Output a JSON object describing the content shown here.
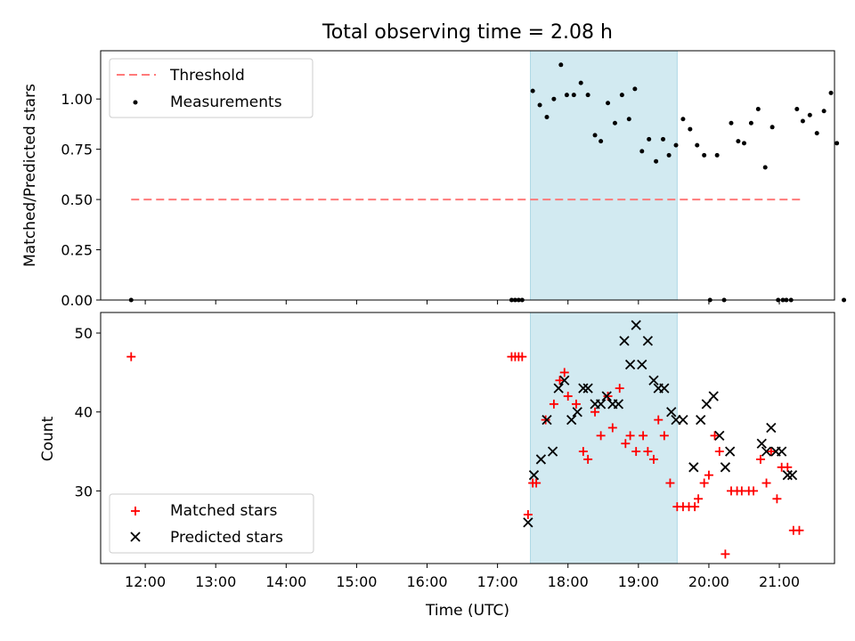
{
  "chart_data": [
    {
      "type": "scatter",
      "title": "Total observing time = 2.08 h",
      "ylabel": "Matched/Predicted stars",
      "xlabel": "",
      "xlim": [
        "11:22",
        "21:47"
      ],
      "ylim": [
        0,
        1.24
      ],
      "yticks": [
        "0.00",
        "0.25",
        "0.50",
        "0.75",
        "1.00"
      ],
      "highlight_span": {
        "from": "17:28",
        "to": "19:33",
        "color": "#add8e6"
      },
      "legend_position": "upper-left",
      "legend": [
        {
          "name": "Threshold",
          "style": "dashed-line",
          "color": "#ff7a7a"
        },
        {
          "name": "Measurements",
          "style": "dot",
          "color": "#000000"
        }
      ],
      "threshold": {
        "y": 0.5,
        "from": "11:48",
        "to": "21:18"
      },
      "series": [
        {
          "name": "Measurements",
          "points": [
            [
              "11:48",
              0.0
            ],
            [
              "17:12",
              0.0
            ],
            [
              "17:15",
              0.0
            ],
            [
              "17:18",
              0.0
            ],
            [
              "17:21",
              0.0
            ],
            [
              "17:30",
              1.04
            ],
            [
              "17:36",
              0.97
            ],
            [
              "17:42",
              0.91
            ],
            [
              "17:48",
              1.0
            ],
            [
              "17:54",
              1.17
            ],
            [
              "17:59",
              1.02
            ],
            [
              "18:05",
              1.02
            ],
            [
              "18:11",
              1.08
            ],
            [
              "18:17",
              1.02
            ],
            [
              "18:23",
              0.82
            ],
            [
              "18:28",
              0.79
            ],
            [
              "18:34",
              0.98
            ],
            [
              "18:40",
              0.88
            ],
            [
              "18:46",
              1.02
            ],
            [
              "18:52",
              0.9
            ],
            [
              "18:57",
              1.05
            ],
            [
              "19:03",
              0.74
            ],
            [
              "19:09",
              0.8
            ],
            [
              "19:15",
              0.69
            ],
            [
              "19:21",
              0.8
            ],
            [
              "19:26",
              0.72
            ],
            [
              "19:32",
              0.77
            ],
            [
              "19:38",
              0.9
            ],
            [
              "19:44",
              0.85
            ],
            [
              "19:50",
              0.77
            ],
            [
              "19:56",
              0.72
            ],
            [
              "20:01",
              0.0
            ],
            [
              "20:07",
              0.72
            ],
            [
              "20:13",
              0.0
            ],
            [
              "20:19",
              0.88
            ],
            [
              "20:25",
              0.79
            ],
            [
              "20:30",
              0.78
            ],
            [
              "20:36",
              0.88
            ],
            [
              "20:42",
              0.95
            ],
            [
              "20:48",
              0.66
            ],
            [
              "20:54",
              0.86
            ],
            [
              "20:59",
              0.0
            ],
            [
              "21:03",
              0.0
            ],
            [
              "21:06",
              0.0
            ],
            [
              "21:10",
              0.0
            ],
            [
              "21:15",
              0.95
            ],
            [
              "21:20",
              0.89
            ],
            [
              "21:26",
              0.92
            ],
            [
              "21:32",
              0.83
            ],
            [
              "21:38",
              0.94
            ],
            [
              "21:44",
              1.03
            ],
            [
              "21:49",
              0.78
            ],
            [
              "21:55",
              0.0
            ]
          ]
        }
      ]
    },
    {
      "type": "scatter",
      "title": "",
      "ylabel": "Count",
      "xlabel": "Time (UTC)",
      "xlim": [
        "11:22",
        "21:47"
      ],
      "ylim": [
        20.8,
        52.6
      ],
      "yticks": [
        "30",
        "40",
        "50"
      ],
      "xticks": [
        "12:00",
        "13:00",
        "14:00",
        "15:00",
        "16:00",
        "17:00",
        "18:00",
        "19:00",
        "20:00",
        "21:00"
      ],
      "highlight_span": {
        "from": "17:28",
        "to": "19:33",
        "color": "#add8e6"
      },
      "legend_position": "lower-left",
      "legend": [
        {
          "name": "Matched stars",
          "style": "plus",
          "color": "#ff0000"
        },
        {
          "name": "Predicted stars",
          "style": "x",
          "color": "#000000"
        }
      ],
      "series": [
        {
          "name": "Matched stars",
          "color": "#ff0000",
          "marker": "plus",
          "points": [
            [
              "11:48",
              47
            ],
            [
              "17:12",
              47
            ],
            [
              "17:15",
              47
            ],
            [
              "17:18",
              47
            ],
            [
              "17:21",
              47
            ],
            [
              "17:26",
              27
            ],
            [
              "17:30",
              31
            ],
            [
              "17:33",
              31
            ],
            [
              "17:41",
              39
            ],
            [
              "17:48",
              41
            ],
            [
              "17:53",
              44
            ],
            [
              "17:57",
              45
            ],
            [
              "18:00",
              42
            ],
            [
              "18:07",
              41
            ],
            [
              "18:13",
              35
            ],
            [
              "18:17",
              34
            ],
            [
              "18:23",
              40
            ],
            [
              "18:28",
              37
            ],
            [
              "18:34",
              42
            ],
            [
              "18:38",
              38
            ],
            [
              "18:44",
              43
            ],
            [
              "18:49",
              36
            ],
            [
              "18:53",
              37
            ],
            [
              "18:58",
              35
            ],
            [
              "19:04",
              37
            ],
            [
              "19:08",
              35
            ],
            [
              "19:13",
              34
            ],
            [
              "19:17",
              39
            ],
            [
              "19:22",
              37
            ],
            [
              "19:27",
              31
            ],
            [
              "19:33",
              28
            ],
            [
              "19:38",
              28
            ],
            [
              "19:43",
              28
            ],
            [
              "19:48",
              28
            ],
            [
              "19:51",
              29
            ],
            [
              "19:56",
              31
            ],
            [
              "20:00",
              32
            ],
            [
              "20:05",
              37
            ],
            [
              "20:09",
              35
            ],
            [
              "20:14",
              22
            ],
            [
              "20:19",
              30
            ],
            [
              "20:24",
              30
            ],
            [
              "20:28",
              30
            ],
            [
              "20:34",
              30
            ],
            [
              "20:38",
              30
            ],
            [
              "20:44",
              34
            ],
            [
              "20:49",
              31
            ],
            [
              "20:53",
              35
            ],
            [
              "20:58",
              29
            ],
            [
              "21:02",
              33
            ],
            [
              "21:07",
              33
            ],
            [
              "21:12",
              25
            ],
            [
              "21:17",
              25
            ]
          ]
        },
        {
          "name": "Predicted stars",
          "color": "#000000",
          "marker": "x",
          "points": [
            [
              "17:26",
              26
            ],
            [
              "17:31",
              32
            ],
            [
              "17:37",
              34
            ],
            [
              "17:42",
              39
            ],
            [
              "17:47",
              35
            ],
            [
              "17:52",
              43
            ],
            [
              "17:57",
              44
            ],
            [
              "18:03",
              39
            ],
            [
              "18:08",
              40
            ],
            [
              "18:13",
              43
            ],
            [
              "18:17",
              43
            ],
            [
              "18:23",
              41
            ],
            [
              "18:28",
              41
            ],
            [
              "18:33",
              42
            ],
            [
              "18:38",
              41
            ],
            [
              "18:43",
              41
            ],
            [
              "18:48",
              49
            ],
            [
              "18:53",
              46
            ],
            [
              "18:58",
              51
            ],
            [
              "19:03",
              46
            ],
            [
              "19:08",
              49
            ],
            [
              "19:13",
              44
            ],
            [
              "19:17",
              43
            ],
            [
              "19:22",
              43
            ],
            [
              "19:28",
              40
            ],
            [
              "19:32",
              39
            ],
            [
              "19:38",
              39
            ],
            [
              "19:47",
              33
            ],
            [
              "19:53",
              39
            ],
            [
              "19:58",
              41
            ],
            [
              "20:04",
              42
            ],
            [
              "20:09",
              37
            ],
            [
              "20:14",
              33
            ],
            [
              "20:18",
              35
            ],
            [
              "20:45",
              36
            ],
            [
              "20:49",
              35
            ],
            [
              "20:53",
              38
            ],
            [
              "20:57",
              35
            ],
            [
              "21:02",
              35
            ],
            [
              "21:07",
              32
            ],
            [
              "21:11",
              32
            ]
          ]
        }
      ]
    }
  ]
}
